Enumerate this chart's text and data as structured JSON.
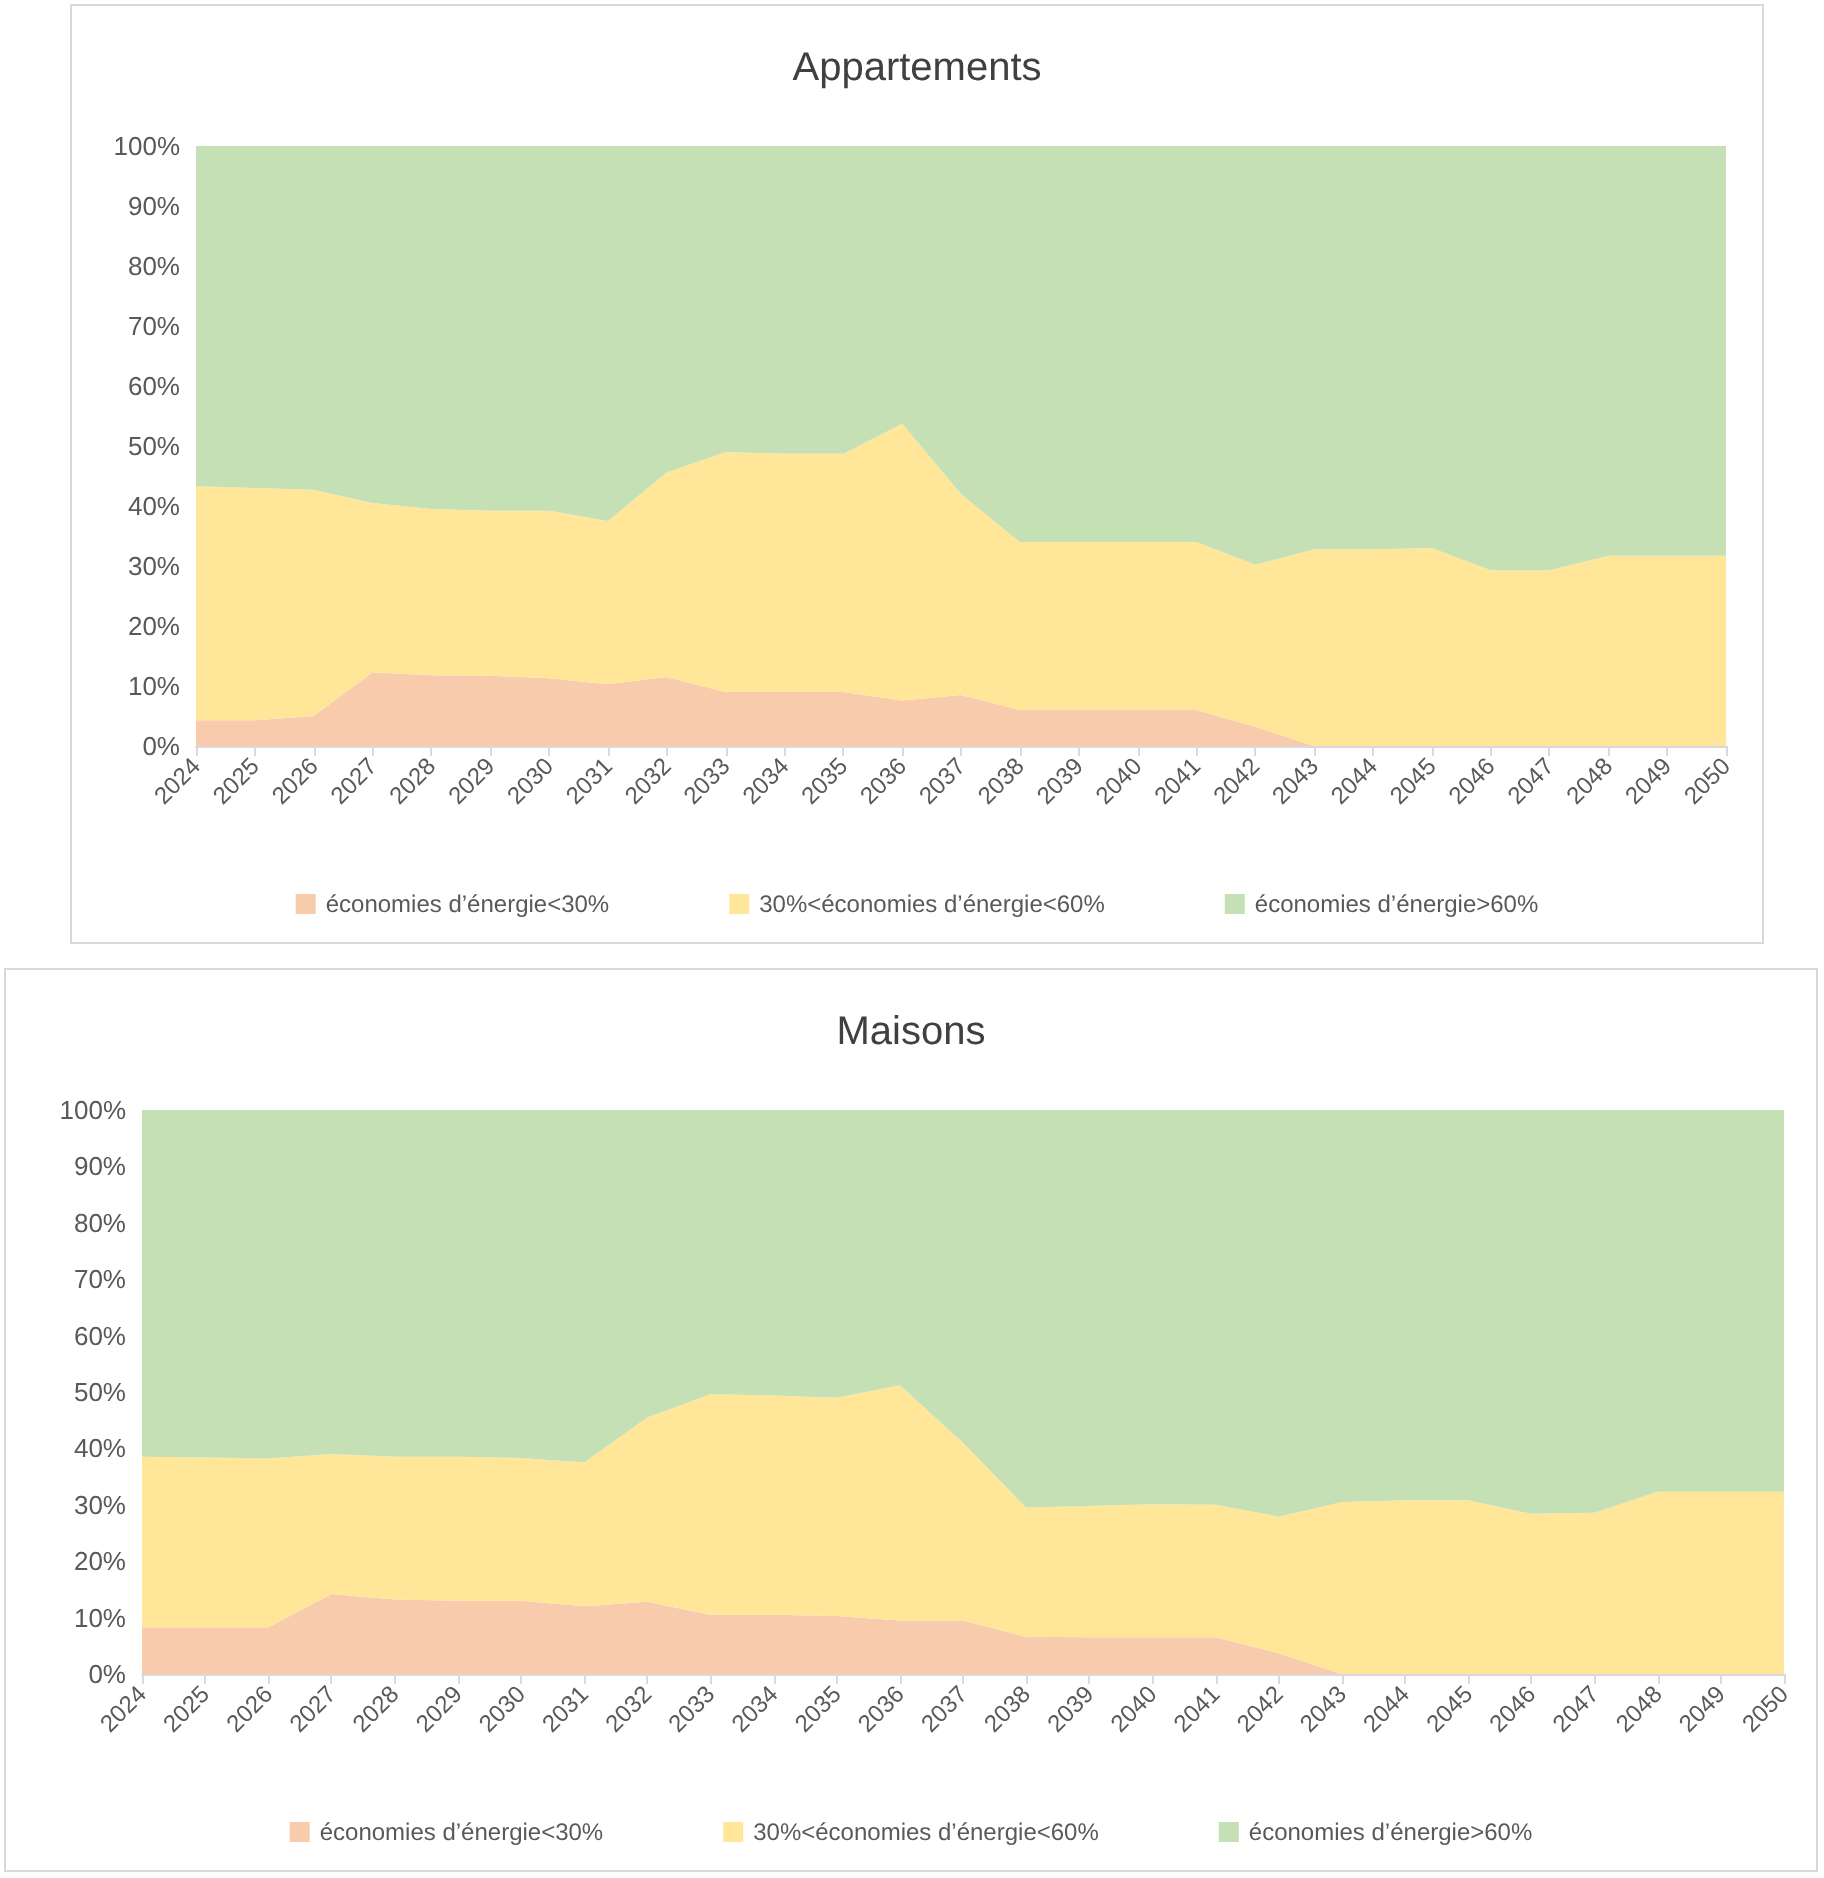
{
  "chart_data": [
    {
      "type": "area",
      "title": "Appartements",
      "stacked": true,
      "legend": "bottom",
      "grid": false,
      "categories": [
        "2024",
        "2025",
        "2026",
        "2027",
        "2028",
        "2029",
        "2030",
        "2031",
        "2032",
        "2033",
        "2034",
        "2035",
        "2036",
        "2037",
        "2038",
        "2039",
        "2040",
        "2041",
        "2042",
        "2043",
        "2044",
        "2045",
        "2046",
        "2047",
        "2048",
        "2049",
        "2050"
      ],
      "ylim": [
        0,
        100
      ],
      "yticks": [
        {
          "value": 0,
          "label": "0%"
        },
        {
          "value": 10,
          "label": "10%"
        },
        {
          "value": 20,
          "label": "20%"
        },
        {
          "value": 30,
          "label": "30%"
        },
        {
          "value": 40,
          "label": "40%"
        },
        {
          "value": 50,
          "label": "50%"
        },
        {
          "value": 60,
          "label": "60%"
        },
        {
          "value": 70,
          "label": "70%"
        },
        {
          "value": 80,
          "label": "80%"
        },
        {
          "value": 90,
          "label": "90%"
        },
        {
          "value": 100,
          "label": "100%"
        }
      ],
      "series": [
        {
          "name": "économies d’énergie<30%",
          "color": "#f8cbad",
          "values": [
            4.3,
            4.3,
            5,
            12.3,
            11.8,
            11.7,
            11.3,
            10.3,
            11.5,
            9,
            9,
            9,
            7.6,
            8.5,
            6,
            6,
            6,
            6,
            3.2,
            0,
            0,
            0,
            0,
            0,
            0,
            0,
            0
          ]
        },
        {
          "name": "30%<économies d’énergie<60%",
          "color": "#ffe699",
          "values": [
            39,
            38.7,
            37.7,
            28.2,
            27.7,
            27.5,
            27.9,
            27.2,
            34.1,
            40,
            39.7,
            39.7,
            46.1,
            33.5,
            28,
            28,
            28,
            28,
            27,
            32.8,
            32.8,
            33,
            29.3,
            29.3,
            31.7,
            31.7,
            31.7
          ]
        },
        {
          "name": "économies d’énergie>60%",
          "color": "#c5e0b4",
          "values": [
            56.7,
            57,
            57.3,
            59.5,
            60.5,
            60.8,
            60.8,
            62.5,
            54.4,
            51,
            51.3,
            51.3,
            46.3,
            58,
            66,
            66,
            66,
            66,
            69.8,
            67.2,
            67.2,
            67,
            70.7,
            70.7,
            68.3,
            68.3,
            68.3
          ]
        }
      ]
    },
    {
      "type": "area",
      "title": "Maisons",
      "stacked": true,
      "legend": "bottom",
      "grid": false,
      "categories": [
        "2024",
        "2025",
        "2026",
        "2027",
        "2028",
        "2029",
        "2030",
        "2031",
        "2032",
        "2033",
        "2034",
        "2035",
        "2036",
        "2037",
        "2038",
        "2039",
        "2040",
        "2041",
        "2042",
        "2043",
        "2044",
        "2045",
        "2046",
        "2047",
        "2048",
        "2049",
        "2050"
      ],
      "ylim": [
        0,
        100
      ],
      "yticks": [
        {
          "value": 0,
          "label": "0%"
        },
        {
          "value": 10,
          "label": "10%"
        },
        {
          "value": 20,
          "label": "20%"
        },
        {
          "value": 30,
          "label": "30%"
        },
        {
          "value": 40,
          "label": "40%"
        },
        {
          "value": 50,
          "label": "50%"
        },
        {
          "value": 60,
          "label": "60%"
        },
        {
          "value": 70,
          "label": "70%"
        },
        {
          "value": 80,
          "label": "80%"
        },
        {
          "value": 90,
          "label": "90%"
        },
        {
          "value": 100,
          "label": "100%"
        }
      ],
      "series": [
        {
          "name": "économies d’énergie<30%",
          "color": "#f8cbad",
          "values": [
            8.3,
            8.3,
            8.3,
            14.2,
            13.2,
            13,
            13,
            12,
            12.8,
            10.5,
            10.5,
            10.3,
            9.5,
            9.5,
            6.6,
            6.5,
            6.5,
            6.5,
            3.7,
            0,
            0,
            0,
            0,
            0,
            0,
            0,
            0
          ]
        },
        {
          "name": "30%<économies d’énergie<60%",
          "color": "#ffe699",
          "values": [
            30.2,
            30.1,
            29.9,
            24.8,
            25.3,
            25.5,
            25.3,
            25.5,
            32.7,
            39.1,
            38.9,
            38.7,
            41.7,
            31.5,
            22.9,
            23.3,
            23.6,
            23.5,
            24.2,
            30.5,
            30.8,
            30.8,
            28.4,
            28.6,
            32.3,
            32.3,
            32.3
          ]
        },
        {
          "name": "économies d’énergie>60%",
          "color": "#c5e0b4",
          "values": [
            61.5,
            61.6,
            61.8,
            61,
            61.5,
            61.5,
            61.7,
            62.5,
            54.5,
            50.4,
            50.6,
            51,
            48.8,
            59,
            70.5,
            70.2,
            69.9,
            70,
            72.1,
            69.5,
            69.2,
            69.2,
            71.6,
            71.4,
            67.7,
            67.7,
            67.7
          ]
        }
      ]
    }
  ]
}
